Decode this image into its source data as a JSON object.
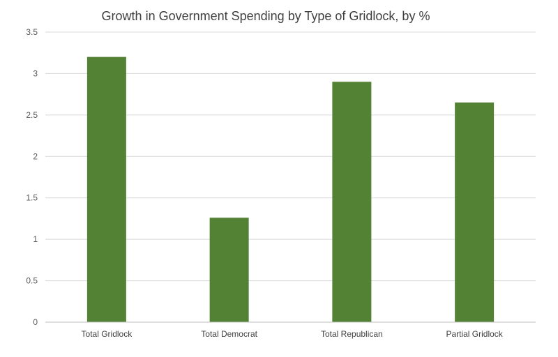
{
  "chart_data": {
    "type": "bar",
    "title": "Growth in Government Spending by Type of Gridlock, by %",
    "categories": [
      "Total Gridlock",
      "Total Democrat",
      "Total Republican",
      "Partial Gridlock"
    ],
    "values": [
      3.2,
      1.26,
      2.9,
      2.65
    ],
    "yticks": [
      "0",
      "0.5",
      "1",
      "1.5",
      "2",
      "2.5",
      "3",
      "3.5"
    ],
    "ylim": [
      0,
      3.5
    ],
    "grid": true,
    "legend": "none",
    "colors": {
      "bar": "#548235",
      "grid": "#d9d9d9",
      "axis": "#bfbfbf"
    }
  }
}
